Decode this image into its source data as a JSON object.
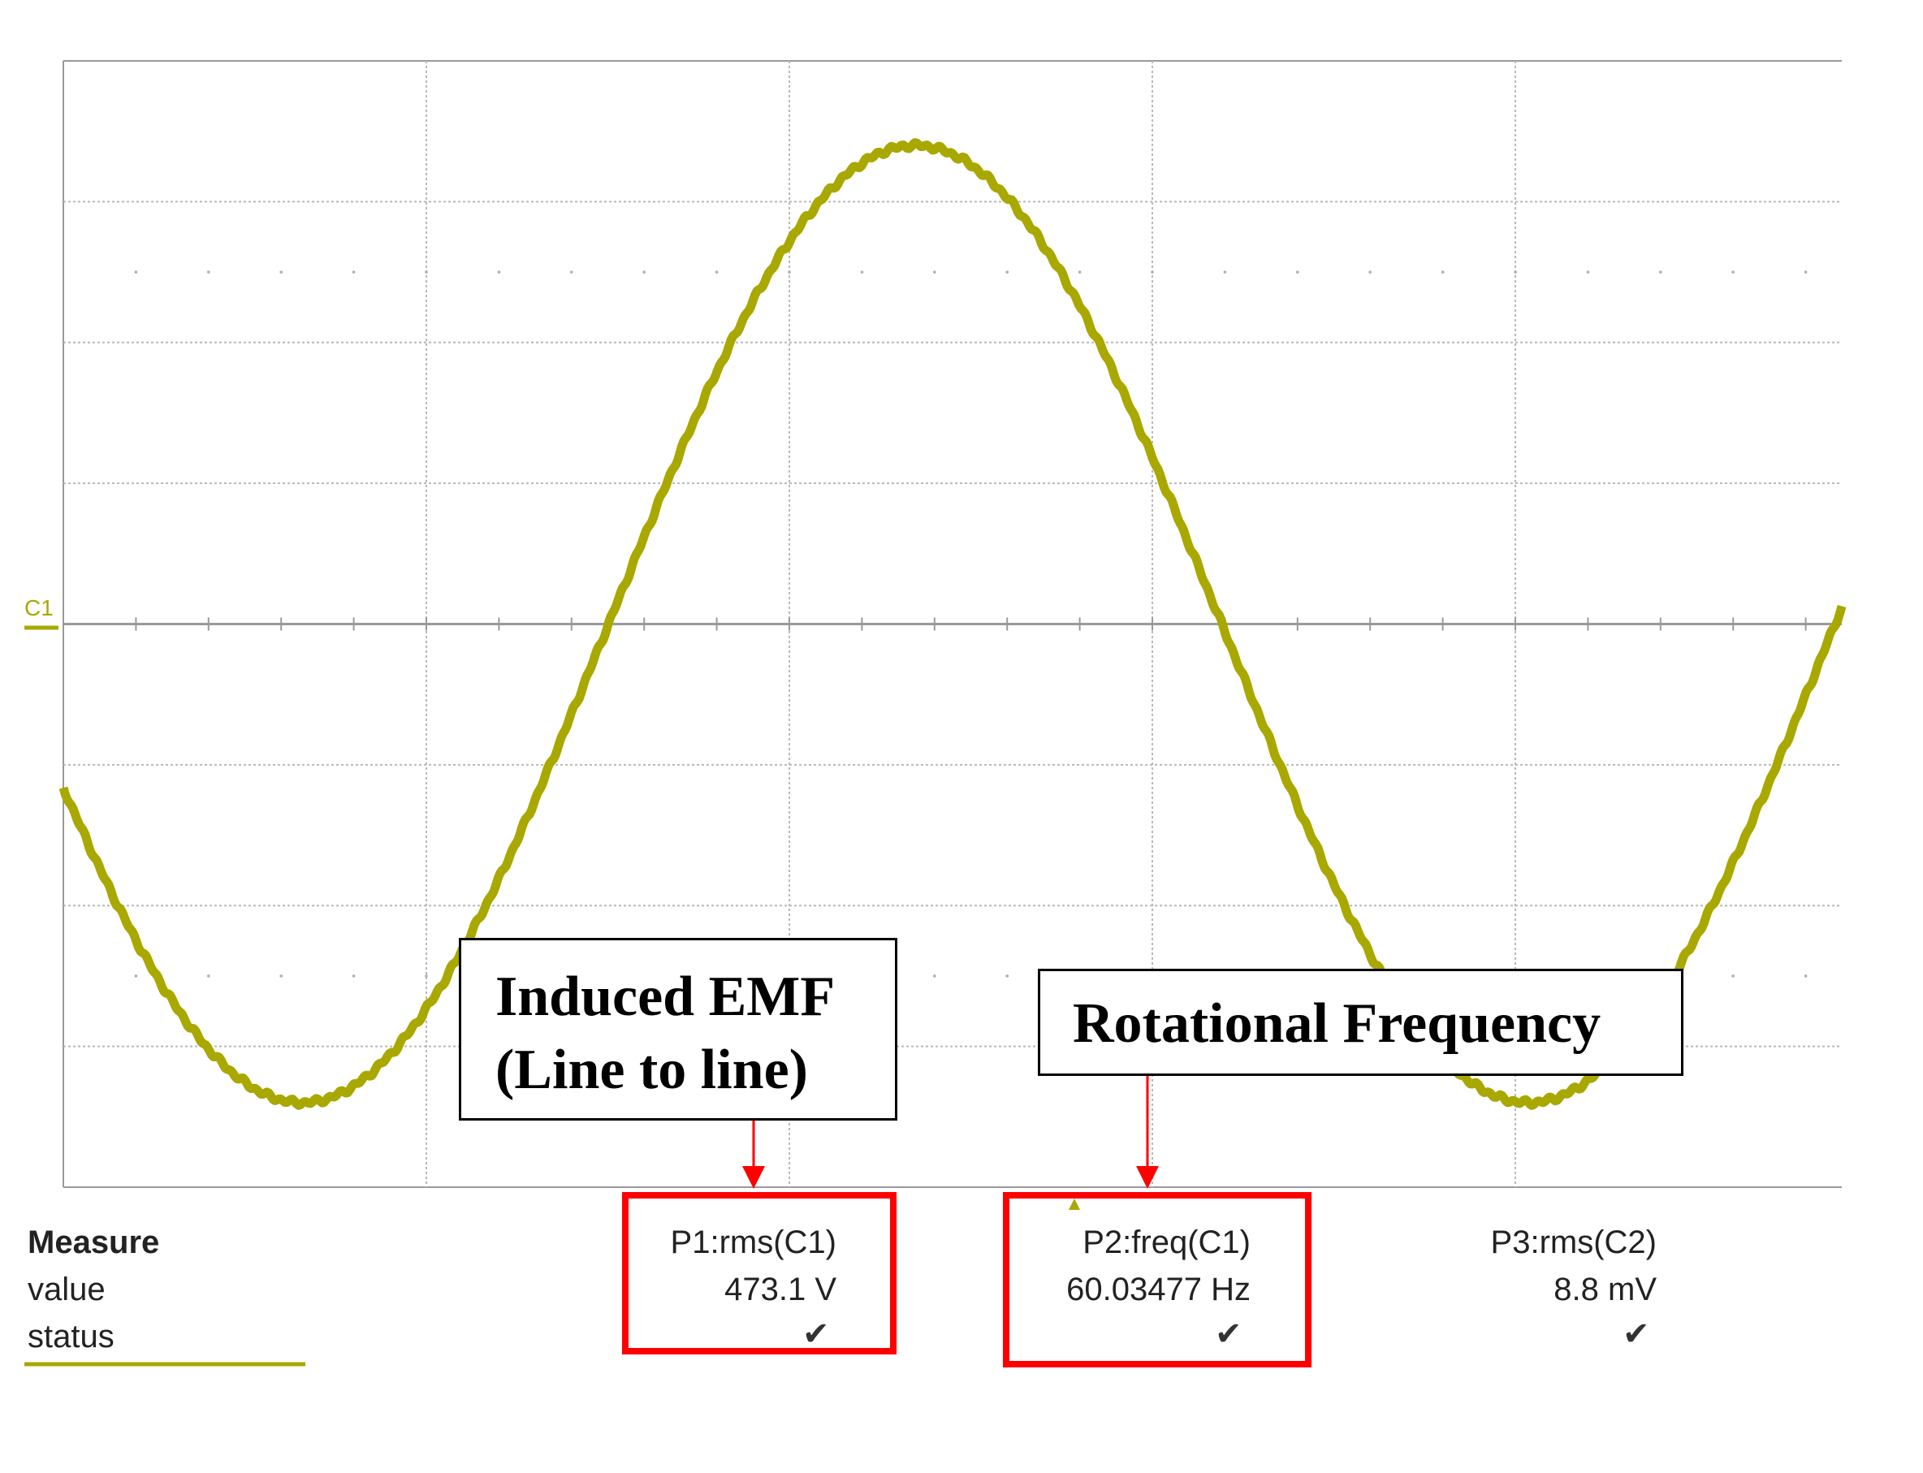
{
  "chart_data": {
    "type": "line",
    "channel_label": "C1",
    "series": [
      {
        "name": "",
        "color": "#a8a800"
      }
    ],
    "grid": true,
    "grid_divisions": {
      "x": 5,
      "y": 8
    },
    "waveform": {
      "shape": "sine",
      "cycles_shown": 1.45,
      "start_phase_deg": 200,
      "amplitude_divisions": 3.4
    }
  },
  "measure": {
    "header": "Measure",
    "rows": [
      "value",
      "status"
    ],
    "p1": {
      "label": "P1:rms(C1)",
      "value": "473.1 V"
    },
    "p2": {
      "label": "P2:freq(C1)",
      "value": "60.03477 Hz"
    },
    "p3": {
      "label": "P3:rms(C2)",
      "value": "8.8 mV"
    },
    "check_icon": "checkmark-icon"
  },
  "annotations": {
    "emf_line1": "Induced EMF",
    "emf_line2": "(Line to line)",
    "freq": "Rotational Frequency"
  },
  "colors": {
    "trace": "#a8a800",
    "grid": "#b8b8b8",
    "highlight": "#ff0000"
  }
}
